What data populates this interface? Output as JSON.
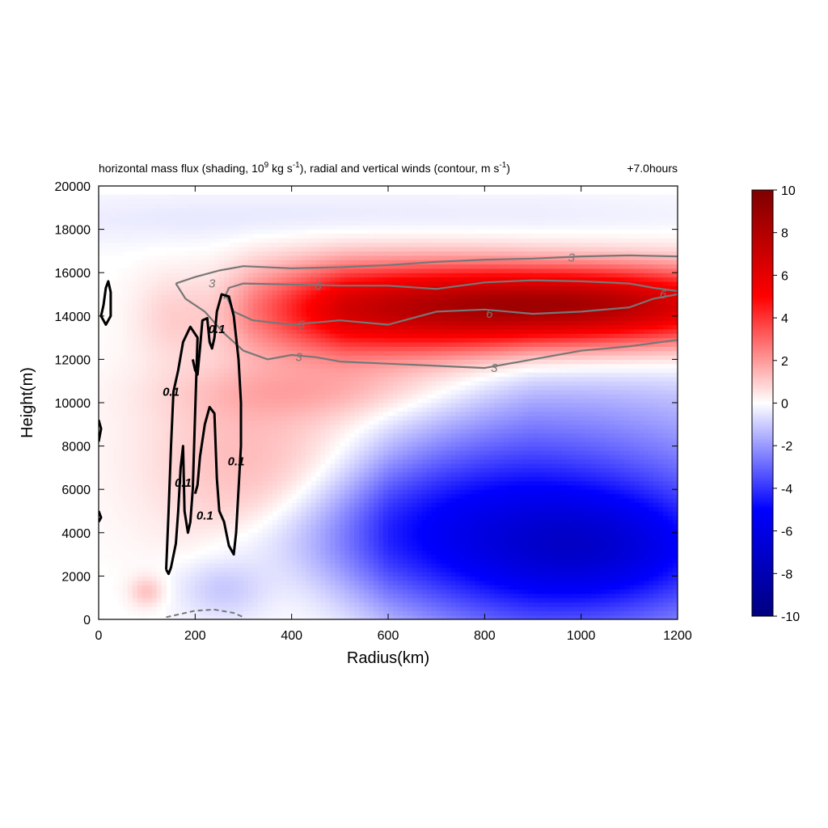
{
  "chart_data": {
    "type": "heatmap",
    "title_left": "horizontal mass flux (shading, 10",
    "title_left_sup1": "9",
    "title_left_mid": " kg s",
    "title_left_sup2": "-1",
    "title_left_mid2": "), radial and vertical winds (contour, m s",
    "title_left_sup3": "-1",
    "title_left_end": ")",
    "title_right": "+7.0hours",
    "xlabel": "Radius(km)",
    "ylabel": "Height(m)",
    "xlim": [
      0,
      1200
    ],
    "ylim": [
      0,
      20000
    ],
    "xticks": [
      0,
      200,
      400,
      600,
      800,
      1000,
      1200
    ],
    "yticks": [
      0,
      2000,
      4000,
      6000,
      8000,
      10000,
      12000,
      14000,
      16000,
      18000,
      20000
    ],
    "colorbar": {
      "min": -10,
      "max": 10,
      "ticks": [
        10,
        8,
        6,
        4,
        2,
        0,
        -2,
        -4,
        -6,
        -8,
        -10
      ],
      "colors": [
        "#00007f",
        "#0000ff",
        "#ffffff",
        "#ff0000",
        "#7f0000"
      ]
    },
    "shading_features": [
      {
        "name": "upper outflow (positive)",
        "center": [
          1000,
          14500
        ],
        "peak": 9.5,
        "radius_km": 420,
        "height_m": 2200
      },
      {
        "name": "upper outflow body",
        "center": [
          700,
          14000
        ],
        "peak": 7,
        "radius_km": 350,
        "height_m": 2200
      },
      {
        "name": "mid-level inflow (negative)",
        "center": [
          1000,
          3200
        ],
        "peak": -7,
        "radius_km": 350,
        "height_m": 3000
      },
      {
        "name": "mid-level inflow body",
        "center": [
          650,
          4200
        ],
        "peak": -5,
        "radius_km": 300,
        "height_m": 2500
      }
    ],
    "contour_levels": {
      "radial_wind": [
        3,
        6
      ],
      "vertical_wind": [
        0.1
      ]
    },
    "contour_labels": [
      {
        "text": "3",
        "x": 235,
        "y": 15500,
        "kind": "radial"
      },
      {
        "text": "6",
        "x": 455,
        "y": 15400,
        "kind": "radial"
      },
      {
        "text": "3",
        "x": 980,
        "y": 16700,
        "kind": "radial"
      },
      {
        "text": "6",
        "x": 1170,
        "y": 15000,
        "kind": "radial"
      },
      {
        "text": "6",
        "x": 420,
        "y": 13600,
        "kind": "radial"
      },
      {
        "text": "6",
        "x": 810,
        "y": 14100,
        "kind": "radial"
      },
      {
        "text": "3",
        "x": 415,
        "y": 12100,
        "kind": "radial"
      },
      {
        "text": "3",
        "x": 820,
        "y": 11600,
        "kind": "radial"
      },
      {
        "text": "0.1",
        "x": 150,
        "y": 10500,
        "kind": "vertical"
      },
      {
        "text": "0.1",
        "x": 245,
        "y": 13400,
        "kind": "vertical"
      },
      {
        "text": "0.1",
        "x": 285,
        "y": 7300,
        "kind": "vertical"
      },
      {
        "text": "0.1",
        "x": 175,
        "y": 6300,
        "kind": "vertical"
      },
      {
        "text": "0.1",
        "x": 220,
        "y": 4800,
        "kind": "vertical"
      }
    ]
  }
}
